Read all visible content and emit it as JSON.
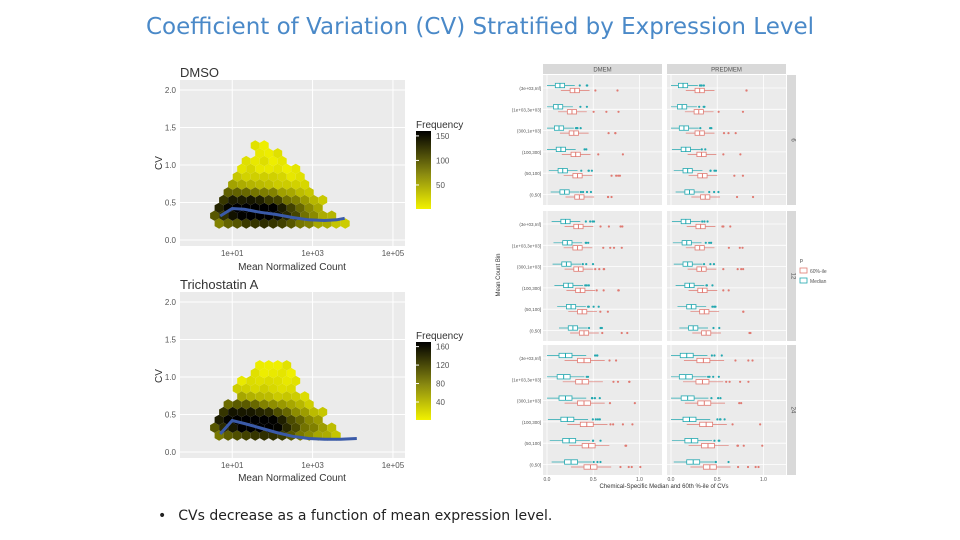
{
  "slide": {
    "title": "Coefficient of Variation (CV) Stratified by Expression Level",
    "bullet": "CVs decrease as a function of mean expression level."
  },
  "colors": {
    "title": "#4a89c8",
    "panel_bg": "#ebebeb",
    "hex_low": "#f0f000",
    "hex_high": "#000000",
    "trend": "#3a5aa8",
    "pct60": "#e07a72",
    "median": "#22a8b0"
  },
  "chart_data": [
    {
      "type": "scatter",
      "subtype": "hexbin",
      "title": "DMSO",
      "xlabel": "Mean Normalized Count",
      "ylabel": "CV",
      "x_scale": "log10",
      "x_ticks": [
        "1e+01",
        "1e+03",
        "1e+05"
      ],
      "y_ticks": [
        "0.0",
        "0.5",
        "1.0",
        "1.5",
        "2.0"
      ],
      "ylim": [
        0,
        2.0
      ],
      "legend": {
        "title": "Frequency",
        "ticks": [
          150,
          100,
          50
        ],
        "range": [
          1,
          160
        ]
      },
      "trend": {
        "x": [
          0.7,
          1.0,
          1.3,
          1.7,
          2.1,
          2.5,
          2.9,
          3.3,
          3.6,
          3.8
        ],
        "y": [
          0.32,
          0.42,
          0.41,
          0.37,
          0.34,
          0.3,
          0.27,
          0.26,
          0.27,
          0.29
        ]
      }
    },
    {
      "type": "scatter",
      "subtype": "hexbin",
      "title": "Trichostatin A",
      "xlabel": "Mean Normalized Count",
      "ylabel": "CV",
      "x_scale": "log10",
      "x_ticks": [
        "1e+01",
        "1e+03",
        "1e+05"
      ],
      "y_ticks": [
        "0.0",
        "0.5",
        "1.0",
        "1.5",
        "2.0"
      ],
      "ylim": [
        0,
        2.0
      ],
      "legend": {
        "title": "Frequency",
        "ticks": [
          160,
          120,
          80,
          40
        ],
        "range": [
          1,
          170
        ]
      },
      "trend": {
        "x": [
          0.7,
          1.0,
          1.3,
          1.7,
          2.1,
          2.5,
          2.9,
          3.3,
          3.7,
          4.1
        ],
        "y": [
          0.24,
          0.42,
          0.38,
          0.32,
          0.26,
          0.21,
          0.18,
          0.17,
          0.17,
          0.18
        ]
      }
    },
    {
      "type": "bar",
      "subtype": "boxplot",
      "columns": [
        "DMEM",
        "PREDMEM"
      ],
      "rows": [
        "6",
        "12",
        "24"
      ],
      "categories": [
        "(3e+03,Inf]",
        "(1e+03,3e+03]",
        "(300,1e+03]",
        "(100,300]",
        "(50,100]",
        "(0,50]"
      ],
      "ylabel": "Mean Count Bin",
      "xlabel": "Chemical-Specific Median and 60th %-ile of CVs",
      "x_ticks": [
        "0.0",
        "0.5",
        "1.0"
      ],
      "xlim": [
        0,
        1.2
      ],
      "legend": {
        "title": "p",
        "entries": [
          "60%-ile",
          "Median"
        ]
      },
      "series": [
        {
          "name": "Median",
          "medians": [
            [
              [
                0.14,
                0.12,
                0.13,
                0.15,
                0.17,
                0.19
              ],
              [
                0.13,
                0.12,
                0.14,
                0.16,
                0.18,
                0.2
              ]
            ],
            [
              [
                0.2,
                0.22,
                0.21,
                0.23,
                0.26,
                0.28
              ],
              [
                0.16,
                0.17,
                0.18,
                0.2,
                0.22,
                0.24
              ]
            ],
            [
              [
                0.2,
                0.18,
                0.2,
                0.22,
                0.24,
                0.26
              ],
              [
                0.17,
                0.16,
                0.18,
                0.2,
                0.22,
                0.24
              ]
            ]
          ]
        },
        {
          "name": "60%-ile",
          "medians": [
            [
              [
                0.3,
                0.27,
                0.29,
                0.31,
                0.33,
                0.35
              ],
              [
                0.31,
                0.3,
                0.31,
                0.33,
                0.34,
                0.37
              ]
            ],
            [
              [
                0.34,
                0.33,
                0.34,
                0.36,
                0.38,
                0.4
              ],
              [
                0.32,
                0.31,
                0.33,
                0.34,
                0.36,
                0.38
              ]
            ],
            [
              [
                0.4,
                0.38,
                0.4,
                0.43,
                0.45,
                0.47
              ],
              [
                0.35,
                0.34,
                0.36,
                0.38,
                0.4,
                0.42
              ]
            ]
          ]
        }
      ]
    }
  ]
}
